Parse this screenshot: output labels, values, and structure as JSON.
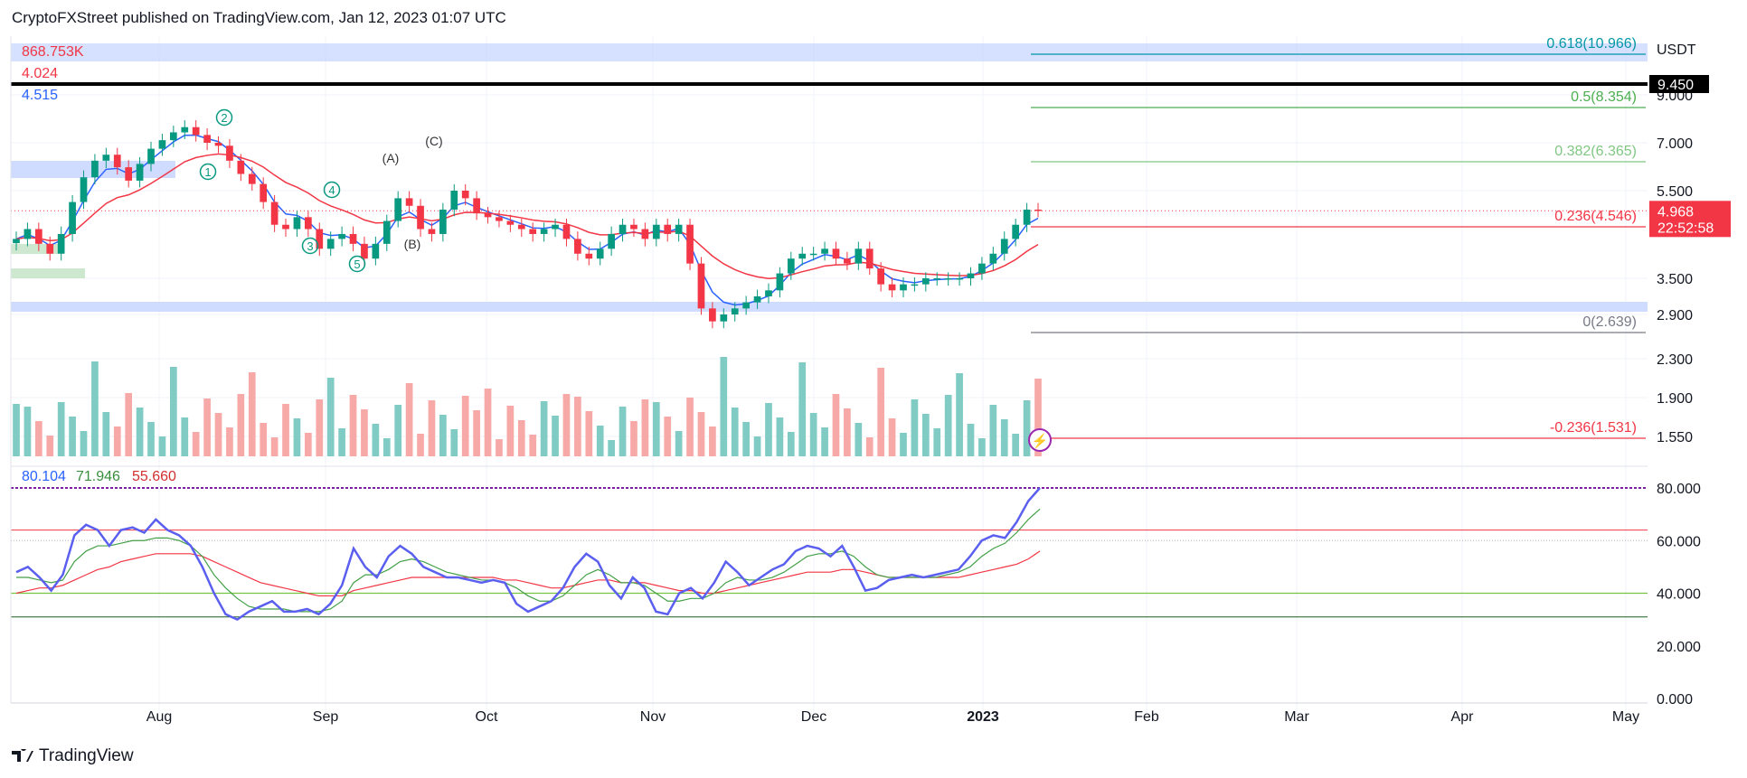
{
  "header": {
    "published": "CryptoFXStreet published on TradingView.com, Jan 12, 2023 01:07 UTC"
  },
  "footer": {
    "brand": "TradingView",
    "logo_icon": "tradingview-logo-icon"
  },
  "price_pane": {
    "currency": "USDT",
    "legend_values": [
      "868.753K",
      "4.024",
      "4.515"
    ],
    "legend_colors": [
      "#f23645",
      "#f23645",
      "#2962ff"
    ],
    "y_ticks": [
      {
        "value": 9.0,
        "label": "9.000"
      },
      {
        "value": 7.0,
        "label": "7.000"
      },
      {
        "value": 5.5,
        "label": "5.500"
      },
      {
        "value": 3.5,
        "label": "3.500"
      },
      {
        "value": 2.9,
        "label": "2.900"
      },
      {
        "value": 2.3,
        "label": "2.300"
      },
      {
        "value": 1.9,
        "label": "1.900"
      },
      {
        "value": 1.55,
        "label": "1.550"
      }
    ],
    "current_price_label": "4.968",
    "countdown_label": "22:52:58",
    "resistance_label": "9.450",
    "fib_levels": [
      {
        "ratio": "0.618",
        "price": 10.966,
        "label": "0.618(10.966)",
        "color": "#0097a7"
      },
      {
        "ratio": "0.5",
        "price": 8.354,
        "label": "0.5(8.354)",
        "color": "#4caf50"
      },
      {
        "ratio": "0.382",
        "price": 6.365,
        "label": "0.382(6.365)",
        "color": "#81c784"
      },
      {
        "ratio": "0.236",
        "price": 4.546,
        "label": "0.236(4.546)",
        "color": "#f23645"
      },
      {
        "ratio": "0",
        "price": 2.639,
        "label": "0(2.639)",
        "color": "#787b86"
      },
      {
        "ratio": "-0.236",
        "price": 1.531,
        "label": "-0.236(1.531)",
        "color": "#f23645"
      }
    ],
    "wave_labels": [
      "1",
      "2",
      "3",
      "4",
      "5",
      "(A)",
      "(B)",
      "(C)"
    ],
    "lightning_icon": "lightning-icon"
  },
  "rsi_pane": {
    "legend_values": [
      "80.104",
      "71.946",
      "55.660"
    ],
    "legend_colors": [
      "#2962ff",
      "#388e3c",
      "#d32f2f"
    ],
    "y_ticks": [
      {
        "value": 80,
        "label": "80.000"
      },
      {
        "value": 60,
        "label": "60.000"
      },
      {
        "value": 40,
        "label": "40.000"
      },
      {
        "value": 20,
        "label": "20.000"
      },
      {
        "value": 0,
        "label": "0.000"
      }
    ]
  },
  "time_axis": [
    "Aug",
    "Sep",
    "Oct",
    "Nov",
    "Dec",
    "2023",
    "Feb",
    "Mar",
    "Apr",
    "May"
  ],
  "chart_data": {
    "type": "candlestick",
    "series": [
      {
        "close": [
          4.3,
          4.5,
          4.2,
          4.0,
          4.4,
          5.2,
          5.9,
          6.4,
          6.6,
          6.2,
          5.8,
          6.3,
          6.8,
          7.1,
          7.4,
          7.6,
          7.3,
          7.0,
          6.9,
          6.4,
          6.0,
          5.7,
          5.2,
          4.6,
          4.5,
          4.8,
          4.5,
          4.1,
          4.3,
          4.4,
          4.2,
          3.9,
          4.2,
          4.7,
          5.3,
          5.1,
          4.5,
          4.4,
          5.0,
          5.5,
          5.3,
          4.9,
          4.8,
          4.7,
          4.6,
          4.5,
          4.4,
          4.5,
          4.6,
          4.3,
          4.0,
          3.9,
          4.1,
          4.4,
          4.6,
          4.5,
          4.3,
          4.6,
          4.4,
          4.6,
          3.8,
          3.0,
          2.8,
          2.9,
          3.0,
          3.1,
          3.2,
          3.3,
          3.6,
          3.9,
          4.0,
          4.0,
          4.1,
          3.9,
          3.8,
          4.1,
          3.7,
          3.4,
          3.3,
          3.4,
          3.4,
          3.5,
          3.5,
          3.5,
          3.5,
          3.6,
          3.8,
          4.0,
          4.3,
          4.6,
          5.0,
          4.97
        ]
      }
    ],
    "rsi": {
      "rsi": [
        48,
        50,
        46,
        41,
        47,
        62,
        66,
        64,
        58,
        64,
        65,
        63,
        68,
        64,
        62,
        58,
        50,
        40,
        32,
        30,
        33,
        35,
        37,
        33,
        33,
        34,
        32,
        36,
        43,
        57,
        50,
        46,
        54,
        58,
        55,
        50,
        48,
        46,
        46,
        45,
        44,
        45,
        44,
        36,
        33,
        35,
        37,
        42,
        50,
        55,
        52,
        43,
        38,
        46,
        42,
        33,
        32,
        40,
        42,
        38,
        44,
        52,
        48,
        43,
        46,
        49,
        51,
        56,
        58,
        57,
        54,
        58,
        50,
        41,
        42,
        45,
        46,
        47,
        46,
        47,
        48,
        49,
        54,
        60,
        62,
        61,
        67,
        75,
        80
      ],
      "signal": [
        46,
        46,
        45,
        44,
        45,
        52,
        56,
        58,
        58,
        59,
        60,
        60,
        61,
        61,
        60,
        58,
        54,
        47,
        42,
        38,
        35,
        34,
        34,
        34,
        33,
        33,
        33,
        34,
        37,
        44,
        47,
        47,
        49,
        52,
        53,
        52,
        50,
        48,
        47,
        46,
        45,
        45,
        44,
        42,
        39,
        37,
        37,
        39,
        43,
        47,
        49,
        47,
        44,
        44,
        43,
        40,
        37,
        37,
        38,
        38,
        40,
        44,
        46,
        45,
        45,
        46,
        48,
        51,
        54,
        55,
        55,
        56,
        54,
        50,
        47,
        46,
        46,
        46,
        46,
        46,
        47,
        48,
        50,
        54,
        57,
        59,
        63,
        68,
        72
      ],
      "ma": [
        40,
        41,
        42,
        42,
        43,
        45,
        47,
        49,
        50,
        52,
        53,
        54,
        55,
        55,
        55,
        55,
        54,
        52,
        50,
        48,
        46,
        44,
        43,
        42,
        41,
        40,
        39,
        39,
        39,
        41,
        42,
        43,
        44,
        45,
        46,
        46,
        46,
        46,
        46,
        46,
        46,
        46,
        45,
        45,
        44,
        43,
        42,
        42,
        43,
        44,
        45,
        45,
        44,
        44,
        44,
        43,
        42,
        41,
        41,
        40,
        40,
        41,
        42,
        43,
        44,
        45,
        46,
        47,
        48,
        48,
        48,
        49,
        49,
        48,
        47,
        46,
        46,
        46,
        46,
        46,
        46,
        46,
        47,
        48,
        49,
        50,
        51,
        53,
        56
      ]
    }
  }
}
